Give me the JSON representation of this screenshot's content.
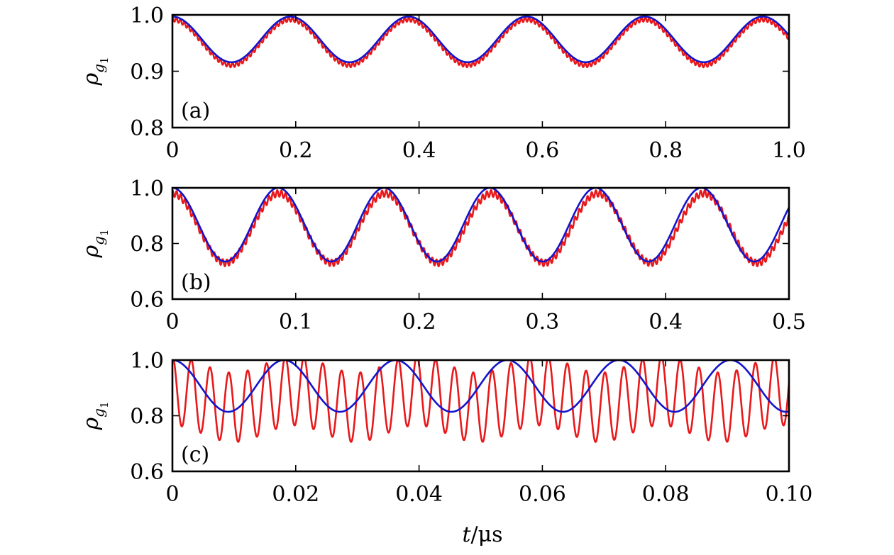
{
  "chart_data": [
    {
      "type": "line",
      "panel_label": "(a)",
      "xlabel": "",
      "ylabel": {
        "main": "ρ",
        "sub_main": "g",
        "sub_index": "1"
      },
      "xlim": [
        0,
        1.0
      ],
      "ylim": [
        0.8,
        1.0
      ],
      "xticks": [
        0,
        0.2,
        0.4,
        0.6,
        0.8,
        1.0
      ],
      "xtick_labels": [
        "0",
        "0.2",
        "0.4",
        "0.6",
        "0.8",
        "1.0"
      ],
      "yticks": [
        0.8,
        0.9,
        1.0
      ],
      "ytick_labels": [
        "0.8",
        "0.9",
        "1.0"
      ],
      "series": [
        {
          "name": "red",
          "color": "#e8191b",
          "kind": "rabi",
          "mean": 0.9535,
          "amp": 0.0405,
          "period": 0.1915,
          "phase": 0,
          "fast_amp": 0.004,
          "fast_period": 0.0065,
          "offset": -0.002
        },
        {
          "name": "blue",
          "color": "#1414cc",
          "kind": "rabi",
          "mean": 0.9565,
          "amp": 0.0405,
          "period": 0.1915,
          "phase": 0,
          "fast_amp": 0,
          "fast_period": 1,
          "offset": 0
        }
      ]
    },
    {
      "type": "line",
      "panel_label": "(b)",
      "xlabel": "",
      "ylabel": {
        "main": "ρ",
        "sub_main": "g",
        "sub_index": "1"
      },
      "xlim": [
        0,
        0.5
      ],
      "ylim": [
        0.6,
        1.0
      ],
      "xticks": [
        0,
        0.1,
        0.2,
        0.3,
        0.4,
        0.5
      ],
      "xtick_labels": [
        "0",
        "0.1",
        "0.2",
        "0.3",
        "0.4",
        "0.5"
      ],
      "yticks": [
        0.6,
        0.8,
        1.0
      ],
      "ytick_labels": [
        "0.6",
        "0.8",
        "1.0"
      ],
      "series": [
        {
          "name": "red",
          "color": "#e8191b",
          "kind": "rabi",
          "mean": 0.855,
          "amp": 0.125,
          "period": 0.0862,
          "phase": 0,
          "fast_amp": 0.012,
          "fast_period": 0.0034,
          "offset": 0
        },
        {
          "name": "blue",
          "color": "#1414cc",
          "kind": "rabi",
          "mean": 0.8675,
          "amp": 0.1325,
          "period": 0.0858,
          "phase": 0,
          "fast_amp": 0,
          "fast_period": 1,
          "offset": 0
        }
      ]
    },
    {
      "type": "line",
      "panel_label": "(c)",
      "xlabel": "t/μs",
      "ylabel": {
        "main": "ρ",
        "sub_main": "g",
        "sub_index": "1"
      },
      "xlim": [
        0,
        0.1
      ],
      "ylim": [
        0.6,
        1.0
      ],
      "xticks": [
        0,
        0.02,
        0.04,
        0.06,
        0.08,
        0.1
      ],
      "xtick_labels": [
        "0",
        "0.02",
        "0.04",
        "0.06",
        "0.08",
        "0.10"
      ],
      "yticks": [
        0.6,
        0.8,
        1.0
      ],
      "ytick_labels": [
        "0.6",
        "0.8",
        "1.0"
      ],
      "series": [
        {
          "name": "red",
          "color": "#e8191b",
          "kind": "beat",
          "mean": 0.86,
          "amp": 0.14,
          "period": 0.00305,
          "beat_amp": 0.03,
          "beat_period": 0.0198,
          "phase": 0
        },
        {
          "name": "blue",
          "color": "#1414cc",
          "kind": "rabi",
          "mean": 0.907,
          "amp": 0.093,
          "period": 0.0181,
          "phase": 0,
          "fast_amp": 0,
          "fast_period": 1,
          "offset": 0
        }
      ]
    }
  ],
  "x_axis_title": {
    "var": "t",
    "unit": "/μs"
  }
}
